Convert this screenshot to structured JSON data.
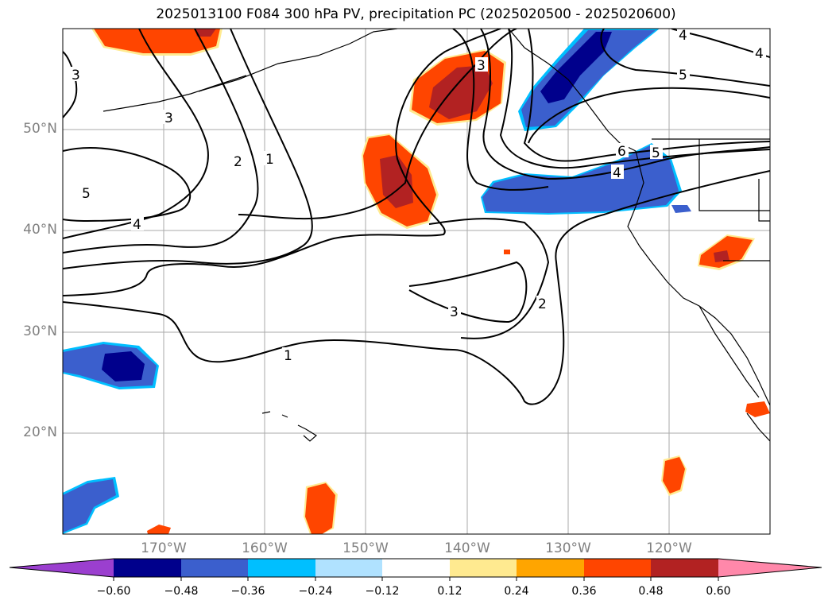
{
  "title": "2025013100 F084 300 hPa PV, precipitation PC (2025020500 - 2025020600)",
  "map": {
    "lat_labels": [
      "50°N",
      "40°N",
      "30°N",
      "20°N"
    ],
    "lon_labels": [
      "170°W",
      "160°W",
      "150°W",
      "140°W",
      "130°W",
      "120°W"
    ],
    "contour_labels": [
      "3",
      "3",
      "2",
      "1",
      "5",
      "4",
      "3",
      "5",
      "4",
      "4",
      "6",
      "5",
      "4",
      "3",
      "2",
      "1"
    ]
  },
  "colorbar": {
    "ticks": [
      "−0.60",
      "−0.48",
      "−0.36",
      "−0.24",
      "−0.12",
      "0.12",
      "0.24",
      "0.36",
      "0.48",
      "0.60"
    ],
    "colors": [
      "#9b3fcf",
      "#00008c",
      "#3b5fcd",
      "#00bfff",
      "#b0e2ff",
      "#ffffff",
      "#ffea90",
      "#ffa500",
      "#ff4500",
      "#b22222",
      "#ff88aa"
    ]
  },
  "chart_data": {
    "type": "map-contour",
    "title": "2025013100 F084 300 hPa PV, precipitation PC (2025020500 - 2025020600)",
    "contour_field": "300 hPa PV",
    "contour_levels": [
      1,
      2,
      3,
      4,
      5,
      6
    ],
    "fill_field": "precipitation PC",
    "fill_levels": [
      -0.6,
      -0.48,
      -0.36,
      -0.24,
      -0.12,
      0.12,
      0.24,
      0.36,
      0.48,
      0.6
    ],
    "lat_range": [
      10,
      60
    ],
    "lon_range": [
      -180,
      -110
    ]
  }
}
